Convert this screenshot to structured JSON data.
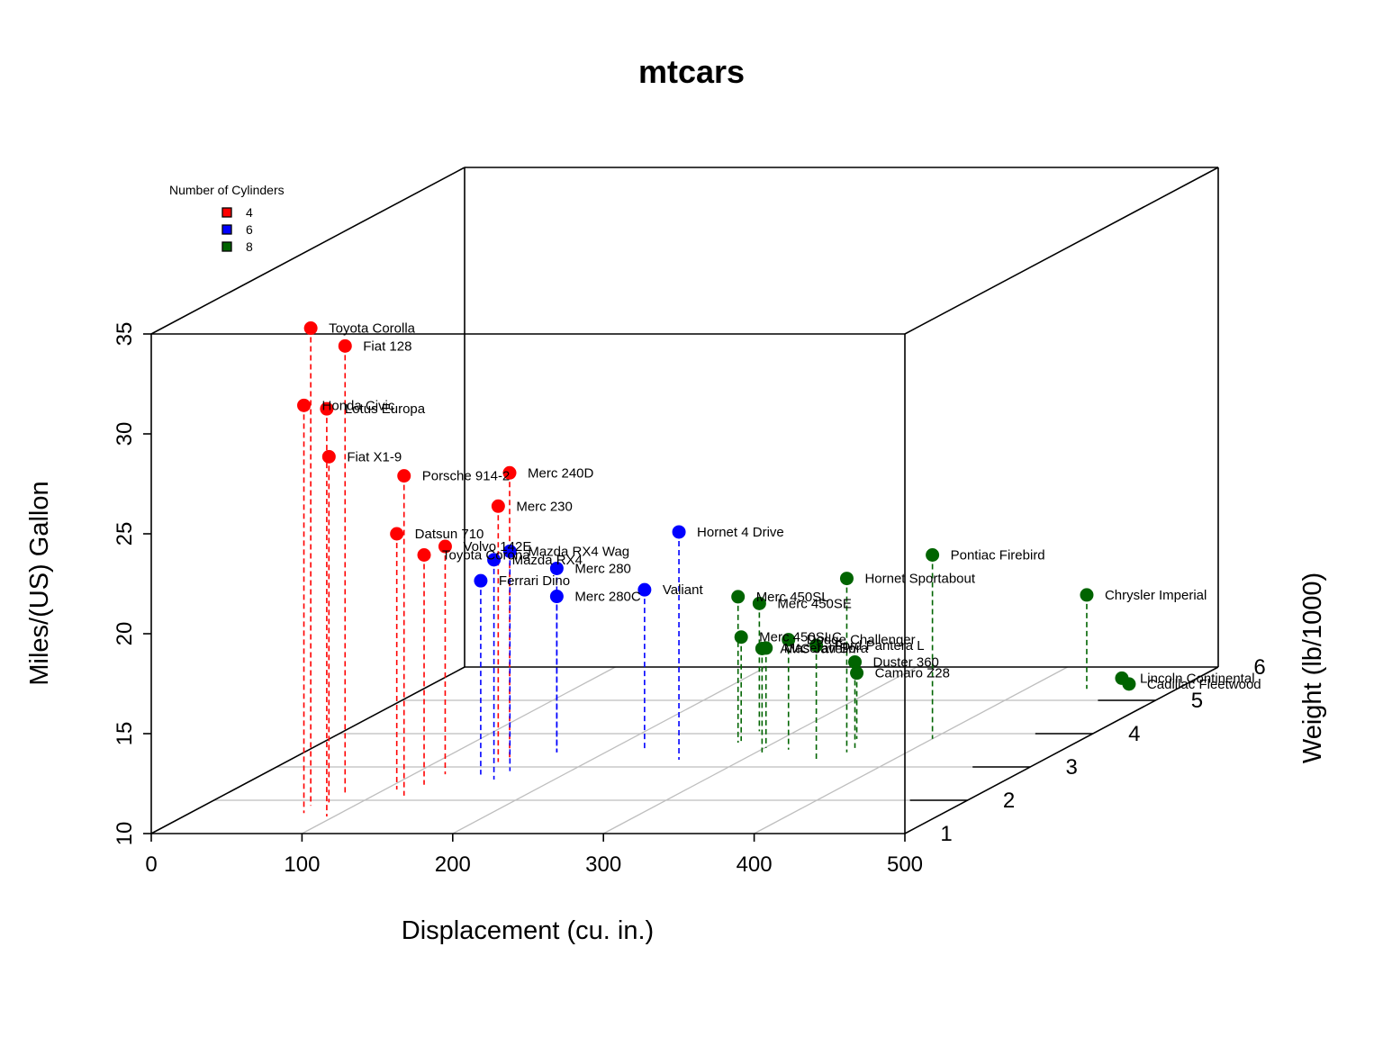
{
  "chart_data": {
    "type": "scatter3d",
    "title": "mtcars",
    "xlabel": "Displacement (cu. in.)",
    "ylabel": "Weight (lb/1000)",
    "zlabel": "Miles/(US) Gallon",
    "xlim": [
      0,
      500
    ],
    "ylim": [
      1,
      6
    ],
    "zlim": [
      10,
      35
    ],
    "x_ticks": [
      "0",
      "100",
      "200",
      "300",
      "400",
      "500"
    ],
    "y_ticks": [
      "1",
      "2",
      "3",
      "4",
      "5",
      "6"
    ],
    "z_ticks": [
      "10",
      "15",
      "20",
      "25",
      "30",
      "35"
    ],
    "grid": true,
    "drop_lines": true,
    "legend": {
      "title": "Number of Cylinders",
      "placement": "top-left",
      "entries": [
        {
          "label": "4",
          "color": "#ff0000"
        },
        {
          "label": "6",
          "color": "#0000ff"
        },
        {
          "label": "8",
          "color": "#006400"
        }
      ]
    },
    "points": [
      {
        "name": "Mazda RX4",
        "x": 160,
        "y": 2.62,
        "z": 21.0,
        "cyl": "6"
      },
      {
        "name": "Mazda RX4 Wag",
        "x": 160,
        "y": 2.875,
        "z": 21.0,
        "cyl": "6"
      },
      {
        "name": "Datsun 710",
        "x": 108,
        "y": 2.32,
        "z": 22.8,
        "cyl": "4"
      },
      {
        "name": "Hornet 4 Drive",
        "x": 258,
        "y": 3.215,
        "z": 21.4,
        "cyl": "6"
      },
      {
        "name": "Hornet Sportabout",
        "x": 360,
        "y": 3.44,
        "z": 18.7,
        "cyl": "8"
      },
      {
        "name": "Valiant",
        "x": 225,
        "y": 3.46,
        "z": 18.1,
        "cyl": "6"
      },
      {
        "name": "Duster 360",
        "x": 360,
        "y": 3.57,
        "z": 14.3,
        "cyl": "8"
      },
      {
        "name": "Merc 240D",
        "x": 146.7,
        "y": 3.19,
        "z": 24.4,
        "cyl": "4"
      },
      {
        "name": "Merc 230",
        "x": 140.8,
        "y": 3.15,
        "z": 22.8,
        "cyl": "4"
      },
      {
        "name": "Merc 280",
        "x": 167.6,
        "y": 3.44,
        "z": 19.2,
        "cyl": "6"
      },
      {
        "name": "Merc 280C",
        "x": 167.6,
        "y": 3.44,
        "z": 17.8,
        "cyl": "6"
      },
      {
        "name": "Merc 450SE",
        "x": 275.8,
        "y": 4.07,
        "z": 16.4,
        "cyl": "8"
      },
      {
        "name": "Merc 450SL",
        "x": 275.8,
        "y": 3.73,
        "z": 17.3,
        "cyl": "8"
      },
      {
        "name": "Merc 450SLC",
        "x": 275.8,
        "y": 3.78,
        "z": 15.2,
        "cyl": "8"
      },
      {
        "name": "Cadillac Fleetwood",
        "x": 472,
        "y": 5.25,
        "z": 10.4,
        "cyl": "8"
      },
      {
        "name": "Lincoln Continental",
        "x": 460,
        "y": 5.424,
        "z": 10.4,
        "cyl": "8"
      },
      {
        "name": "Chrysler Imperial",
        "x": 440,
        "y": 5.345,
        "z": 14.7,
        "cyl": "8"
      },
      {
        "name": "Fiat 128",
        "x": 78.7,
        "y": 2.2,
        "z": 32.4,
        "cyl": "4"
      },
      {
        "name": "Honda Civic",
        "x": 75.7,
        "y": 1.615,
        "z": 30.4,
        "cyl": "4"
      },
      {
        "name": "Toyota Corolla",
        "x": 71.1,
        "y": 1.835,
        "z": 33.9,
        "cyl": "4"
      },
      {
        "name": "Toyota Corona",
        "x": 120.1,
        "y": 2.465,
        "z": 21.5,
        "cyl": "4"
      },
      {
        "name": "Dodge Challenger",
        "x": 318,
        "y": 3.52,
        "z": 15.5,
        "cyl": "8"
      },
      {
        "name": "AMC Javelin",
        "x": 304,
        "y": 3.435,
        "z": 15.2,
        "cyl": "8"
      },
      {
        "name": "Camaro Z28",
        "x": 350,
        "y": 3.84,
        "z": 13.3,
        "cyl": "8"
      },
      {
        "name": "Pontiac Firebird",
        "x": 400,
        "y": 3.845,
        "z": 19.2,
        "cyl": "8"
      },
      {
        "name": "Fiat X1-9",
        "x": 79,
        "y": 1.935,
        "z": 27.3,
        "cyl": "4"
      },
      {
        "name": "Porsche 914-2",
        "x": 120.3,
        "y": 2.14,
        "z": 26.0,
        "cyl": "4"
      },
      {
        "name": "Lotus Europa",
        "x": 95.1,
        "y": 1.513,
        "z": 30.4,
        "cyl": "4"
      },
      {
        "name": "Ford Pantera L",
        "x": 351,
        "y": 3.17,
        "z": 15.8,
        "cyl": "8"
      },
      {
        "name": "Ferrari Dino",
        "x": 145,
        "y": 2.77,
        "z": 19.7,
        "cyl": "6"
      },
      {
        "name": "Maserati Bora",
        "x": 301,
        "y": 3.57,
        "z": 15.0,
        "cyl": "8"
      },
      {
        "name": "Volvo 142E",
        "x": 121,
        "y": 2.78,
        "z": 21.4,
        "cyl": "4"
      }
    ]
  }
}
